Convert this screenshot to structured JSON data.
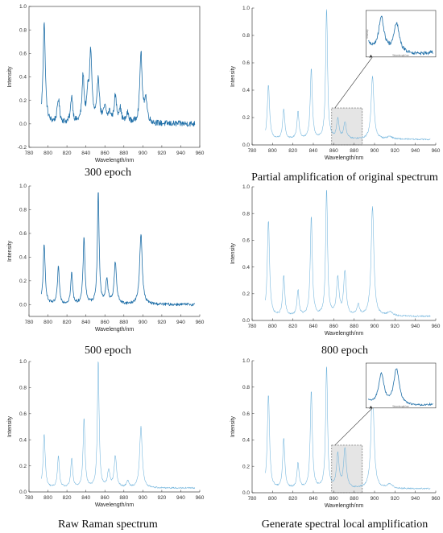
{
  "colors": {
    "epoch_line": "#1f6fa8",
    "light_line": "#6fb3dc",
    "shade": "#cfcfcf",
    "axis": "#444444"
  },
  "chart_data": [
    {
      "type": "line",
      "caption": "300 epoch",
      "xlabel": "Wavelength/nm",
      "ylabel": "Intensity",
      "xlim": [
        780,
        960
      ],
      "ylim": [
        -0.2,
        1.0
      ],
      "xticks": [
        780,
        800,
        820,
        840,
        860,
        880,
        900,
        920,
        940,
        960
      ],
      "yticks": [
        -0.2,
        0.0,
        0.2,
        0.4,
        0.6,
        0.8,
        1.0
      ],
      "ytick_labels": [
        "-0.2",
        "0.0",
        "0.2",
        "0.4",
        "0.6",
        "0.8",
        "1.0"
      ],
      "box": true,
      "noise": 0.025,
      "baseline": 0.0,
      "range": [
        793,
        955
      ],
      "peaks": [
        [
          796,
          0.87,
          1.4
        ],
        [
          811,
          0.2,
          1.5
        ],
        [
          825,
          0.23,
          1.3
        ],
        [
          837,
          0.39,
          1.3
        ],
        [
          842,
          0.2,
          1.2
        ],
        [
          845,
          0.6,
          1.5
        ],
        [
          853,
          0.38,
          1.4
        ],
        [
          860,
          0.12,
          1.8
        ],
        [
          865,
          0.08,
          1.5
        ],
        [
          871,
          0.22,
          1.5
        ],
        [
          876,
          0.12,
          1.5
        ],
        [
          884,
          0.08,
          1.5
        ],
        [
          898,
          0.6,
          1.4
        ],
        [
          903,
          0.2,
          1.8
        ]
      ]
    },
    {
      "type": "line",
      "caption": "Partial amplification of original spectrum",
      "xlabel": "Wavelength/nm",
      "ylabel": "Intensity",
      "xlim": [
        780,
        960
      ],
      "ylim": [
        0.0,
        1.0
      ],
      "xticks": [
        780,
        800,
        820,
        840,
        860,
        880,
        900,
        920,
        940,
        960
      ],
      "yticks": [
        0.0,
        0.2,
        0.4,
        0.6,
        0.8,
        1.0
      ],
      "ytick_labels": [
        "0.0",
        "0.2",
        "0.4",
        "0.6",
        "0.8",
        "1.0"
      ],
      "box": false,
      "noise": 0.006,
      "baseline": 0.04,
      "range": [
        793,
        955
      ],
      "peaks": [
        [
          796,
          0.4,
          1.3
        ],
        [
          811,
          0.22,
          1.2
        ],
        [
          825,
          0.2,
          1.2
        ],
        [
          838,
          0.51,
          1.2
        ],
        [
          853,
          0.96,
          1.1
        ],
        [
          864,
          0.14,
          1.5
        ],
        [
          871,
          0.12,
          1.5
        ],
        [
          898,
          0.46,
          1.6
        ],
        [
          915,
          0.02,
          3
        ]
      ],
      "shade": [
        858,
        888,
        0.0,
        0.27
      ],
      "inset": true,
      "inset_ylabel": "Intensity",
      "inset_xlabel": "Wavelength/nm"
    },
    {
      "type": "line",
      "caption": "500 epoch",
      "xlabel": "Wavelength/nm",
      "ylabel": "Intensity",
      "xlim": [
        780,
        960
      ],
      "ylim": [
        -0.1,
        1.0
      ],
      "xticks": [
        780,
        800,
        820,
        840,
        860,
        880,
        900,
        920,
        940,
        960
      ],
      "yticks": [
        0.0,
        0.2,
        0.4,
        0.6,
        0.8,
        1.0
      ],
      "ytick_labels": [
        "0.0",
        "0.2",
        "0.4",
        "0.6",
        "0.8",
        "1.0"
      ],
      "box": false,
      "noise": 0.012,
      "baseline": 0.0,
      "range": [
        793,
        955
      ],
      "peaks": [
        [
          796,
          0.5,
          1.3
        ],
        [
          811,
          0.31,
          1.2
        ],
        [
          825,
          0.26,
          1.2
        ],
        [
          838,
          0.56,
          1.2
        ],
        [
          853,
          0.95,
          1.1
        ],
        [
          862,
          0.2,
          1.5
        ],
        [
          871,
          0.35,
          1.5
        ],
        [
          898,
          0.6,
          1.6
        ]
      ]
    },
    {
      "type": "line",
      "caption": "800 epoch",
      "xlabel": "Wavelength/nm",
      "ylabel": "Intensity",
      "xlim": [
        780,
        960
      ],
      "ylim": [
        0.0,
        1.0
      ],
      "xticks": [
        780,
        800,
        820,
        840,
        860,
        880,
        900,
        920,
        940,
        960
      ],
      "yticks": [
        0.0,
        0.2,
        0.4,
        0.6,
        0.8,
        1.0
      ],
      "ytick_labels": [
        "0.0",
        "0.2",
        "0.4",
        "0.6",
        "0.8",
        "1.0"
      ],
      "box": false,
      "noise": 0.006,
      "baseline": 0.03,
      "range": [
        793,
        955
      ],
      "peaks": [
        [
          796,
          0.72,
          1.3
        ],
        [
          811,
          0.3,
          1.2
        ],
        [
          825,
          0.19,
          1.2
        ],
        [
          838,
          0.74,
          1.2
        ],
        [
          853,
          0.95,
          1.1
        ],
        [
          864,
          0.28,
          1.5
        ],
        [
          871,
          0.33,
          1.5
        ],
        [
          884,
          0.08,
          1.5
        ],
        [
          898,
          0.82,
          1.6
        ],
        [
          915,
          0.03,
          3
        ]
      ]
    },
    {
      "type": "line",
      "caption": "Raw Raman spectrum",
      "xlabel": "Wavelength/nm",
      "ylabel": "Intensity",
      "xlim": [
        780,
        960
      ],
      "ylim": [
        0.0,
        1.0
      ],
      "xticks": [
        780,
        800,
        820,
        840,
        860,
        880,
        900,
        920,
        940,
        960
      ],
      "yticks": [
        0.0,
        0.2,
        0.4,
        0.6,
        0.8,
        1.0
      ],
      "ytick_labels": [
        "0.0",
        "0.2",
        "0.4",
        "0.6",
        "0.8",
        "1.0"
      ],
      "box": false,
      "noise": 0.006,
      "baseline": 0.03,
      "range": [
        793,
        955
      ],
      "peaks": [
        [
          796,
          0.41,
          1.3
        ],
        [
          811,
          0.24,
          1.2
        ],
        [
          825,
          0.22,
          1.2
        ],
        [
          838,
          0.53,
          1.2
        ],
        [
          853,
          0.98,
          1.1
        ],
        [
          864,
          0.13,
          1.5
        ],
        [
          871,
          0.24,
          1.5
        ],
        [
          884,
          0.05,
          1.5
        ],
        [
          898,
          0.47,
          1.6
        ]
      ]
    },
    {
      "type": "line",
      "caption": "Generate spectral local amplification",
      "xlabel": "Wavelength/nm",
      "ylabel": "Intensity",
      "xlim": [
        780,
        960
      ],
      "ylim": [
        0.0,
        1.0
      ],
      "xticks": [
        780,
        800,
        820,
        840,
        860,
        880,
        900,
        920,
        940,
        960
      ],
      "yticks": [
        0.0,
        0.2,
        0.4,
        0.6,
        0.8,
        1.0
      ],
      "ytick_labels": [
        "0.0",
        "0.2",
        "0.4",
        "0.6",
        "0.8",
        "1.0"
      ],
      "box": false,
      "noise": 0.006,
      "baseline": 0.03,
      "range": [
        793,
        955
      ],
      "peaks": [
        [
          796,
          0.71,
          1.3
        ],
        [
          811,
          0.38,
          1.2
        ],
        [
          825,
          0.19,
          1.2
        ],
        [
          838,
          0.74,
          1.2
        ],
        [
          853,
          0.93,
          1.1
        ],
        [
          864,
          0.25,
          1.5
        ],
        [
          871,
          0.3,
          1.5
        ],
        [
          898,
          0.82,
          1.6
        ],
        [
          915,
          0.03,
          3
        ]
      ],
      "shade": [
        858,
        888,
        0.0,
        0.36
      ],
      "inset": true,
      "inset_ylabel": "",
      "inset_xlabel": "Wavelength/nm"
    }
  ]
}
